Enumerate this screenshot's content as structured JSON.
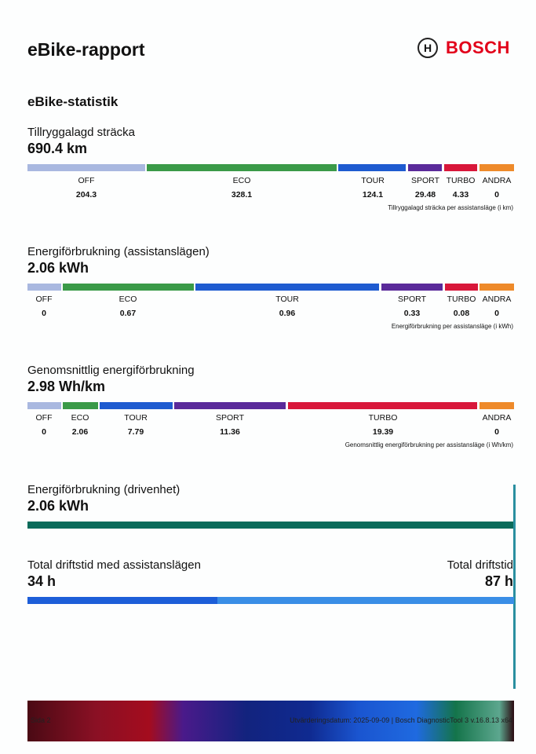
{
  "header": {
    "title": "eBike-rapport",
    "brand": "BOSCH"
  },
  "section_title": "eBike-statistik",
  "distance": {
    "title": "Tillryggalagd sträcka",
    "value": "690.4 km",
    "caption": "Tillryggalagd sträcka per assistansläge (i km)",
    "modes": [
      {
        "label": "OFF",
        "value": "204.3"
      },
      {
        "label": "ECO",
        "value": "328.1"
      },
      {
        "label": "TOUR",
        "value": "124.1"
      },
      {
        "label": "SPORT",
        "value": "29.48"
      },
      {
        "label": "TURBO",
        "value": "4.33"
      },
      {
        "label": "ANDRA",
        "value": "0"
      }
    ]
  },
  "energy": {
    "title": "Energiförbrukning (assistanslägen)",
    "value": "2.06 kWh",
    "caption": "Energiförbrukning per assistansläge (i kWh)",
    "modes": [
      {
        "label": "OFF",
        "value": "0"
      },
      {
        "label": "ECO",
        "value": "0.67"
      },
      {
        "label": "TOUR",
        "value": "0.96"
      },
      {
        "label": "SPORT",
        "value": "0.33"
      },
      {
        "label": "TURBO",
        "value": "0.08"
      },
      {
        "label": "ANDRA",
        "value": "0"
      }
    ]
  },
  "avg": {
    "title": "Genomsnittlig energiförbrukning",
    "value": "2.98 Wh/km",
    "caption": "Genomsnittlig energiförbrukning per assistansläge (i Wh/km)",
    "modes": [
      {
        "label": "OFF",
        "value": "0"
      },
      {
        "label": "ECO",
        "value": "2.06"
      },
      {
        "label": "TOUR",
        "value": "7.79"
      },
      {
        "label": "SPORT",
        "value": "11.36"
      },
      {
        "label": "TURBO",
        "value": "19.39"
      },
      {
        "label": "ANDRA",
        "value": "0"
      }
    ]
  },
  "drive": {
    "title": "Energiförbrukning (drivenhet)",
    "value": "2.06 kWh"
  },
  "time": {
    "assist_title": "Total driftstid med assistanslägen",
    "assist_value": "34 h",
    "total_title": "Total driftstid",
    "total_value": "87 h",
    "assist_fraction": 0.39
  },
  "footer": {
    "page": "Sida 2",
    "info": "Utvärderingsdatum: 2025-09-09 | Bosch DiagnosticTool 3 v.16.8.13 x64"
  },
  "colors": {
    "off": "#a9b8e0",
    "eco": "#3a9a48",
    "tour": "#1e5bd0",
    "sport": "#5a2a9a",
    "turbo": "#d8173a",
    "andra": "#ee8a2a"
  }
}
